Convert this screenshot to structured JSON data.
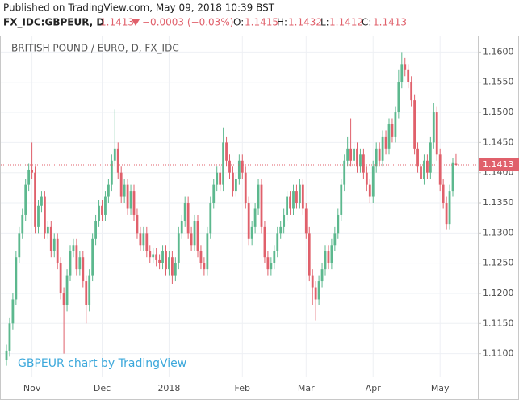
{
  "header": {
    "published": "Published on TradingView.com, May 09, 2018 10:39 BST",
    "symbol": "FX_IDC:GBPEUR, D",
    "change": "−0.0003 (−0.03%)",
    "o_label": "O:",
    "h_label": "H:",
    "l_label": "L:",
    "c_label": "C:"
  },
  "chart_data": {
    "type": "candlestick",
    "title": "BRITISH POUND / EURO, D, FX_IDC",
    "watermark": "GBPEUR chart by TradingView",
    "up_color": "#5cb88e",
    "down_color": "#e0606b",
    "grid": true,
    "ylim": [
      1.1062,
      1.1626
    ],
    "yticks": [
      {
        "value": 1.11,
        "label": "1.1100"
      },
      {
        "value": 1.115,
        "label": "1.1150"
      },
      {
        "value": 1.12,
        "label": "1.1200"
      },
      {
        "value": 1.125,
        "label": "1.1250"
      },
      {
        "value": 1.13,
        "label": "1.1300"
      },
      {
        "value": 1.135,
        "label": "1.1350"
      },
      {
        "value": 1.14,
        "label": "1.1400"
      },
      {
        "value": 1.145,
        "label": "1.1450"
      },
      {
        "value": 1.15,
        "label": "1.1500"
      },
      {
        "value": 1.155,
        "label": "1.1550"
      },
      {
        "value": 1.16,
        "label": "1.1600"
      }
    ],
    "categories": [
      null,
      null,
      null,
      null,
      null,
      null,
      null,
      null,
      "Nov",
      null,
      null,
      null,
      null,
      null,
      null,
      null,
      null,
      null,
      null,
      null,
      null,
      null,
      null,
      null,
      null,
      null,
      null,
      null,
      null,
      null,
      "Dec",
      null,
      null,
      null,
      null,
      null,
      null,
      null,
      null,
      null,
      null,
      null,
      null,
      null,
      null,
      null,
      null,
      null,
      null,
      null,
      null,
      "2018",
      null,
      null,
      null,
      null,
      null,
      null,
      null,
      null,
      null,
      null,
      null,
      null,
      null,
      null,
      null,
      null,
      null,
      null,
      null,
      null,
      null,
      null,
      "Feb",
      null,
      null,
      null,
      null,
      null,
      null,
      null,
      null,
      null,
      null,
      null,
      null,
      null,
      null,
      null,
      null,
      null,
      null,
      null,
      "Mar",
      null,
      null,
      null,
      null,
      null,
      null,
      null,
      null,
      null,
      null,
      null,
      null,
      null,
      null,
      null,
      null,
      null,
      null,
      null,
      null,
      "Apr",
      null,
      null,
      null,
      null,
      null,
      null,
      null,
      null,
      null,
      null,
      null,
      null,
      null,
      null,
      null,
      null,
      null,
      null,
      null,
      null,
      "May",
      null,
      null,
      null,
      null,
      null
    ],
    "open": [
      1.109,
      1.1105,
      1.115,
      1.119,
      1.126,
      1.13,
      1.133,
      1.138,
      1.1405,
      1.14,
      1.131,
      1.1345,
      1.136,
      1.13,
      1.131,
      1.127,
      1.129,
      1.125,
      1.12,
      1.118,
      1.123,
      1.127,
      1.128,
      1.124,
      1.126,
      1.122,
      1.118,
      1.123,
      1.129,
      1.132,
      1.1345,
      1.133,
      1.136,
      1.138,
      1.142,
      1.144,
      1.14,
      1.136,
      1.138,
      1.134,
      1.137,
      1.133,
      1.13,
      1.128,
      1.13,
      1.127,
      1.126,
      1.1265,
      1.1255,
      1.125,
      1.127,
      1.124,
      1.126,
      1.123,
      1.125,
      1.13,
      1.132,
      1.135,
      1.13,
      1.128,
      1.132,
      1.127,
      1.125,
      1.124,
      1.13,
      1.135,
      1.138,
      1.14,
      1.138,
      1.145,
      1.142,
      1.14,
      1.137,
      1.139,
      1.142,
      1.14,
      1.135,
      1.129,
      1.131,
      1.134,
      1.138,
      1.131,
      1.126,
      1.124,
      1.125,
      1.127,
      1.13,
      1.131,
      1.133,
      1.136,
      1.134,
      1.137,
      1.135,
      1.138,
      1.134,
      1.13,
      1.123,
      1.121,
      1.119,
      1.122,
      1.124,
      1.127,
      1.125,
      1.128,
      1.13,
      1.133,
      1.138,
      1.142,
      1.144,
      1.142,
      1.144,
      1.141,
      1.143,
      1.14,
      1.138,
      1.136,
      1.141,
      1.144,
      1.142,
      1.146,
      1.144,
      1.148,
      1.146,
      1.15,
      1.155,
      1.158,
      1.157,
      1.155,
      1.152,
      1.144,
      1.141,
      1.139,
      1.142,
      1.14,
      1.145,
      1.15,
      1.143,
      1.138,
      1.135,
      1.1315,
      1.137,
      1.1415
    ],
    "high": [
      1.1115,
      1.116,
      1.12,
      1.127,
      1.131,
      1.134,
      1.139,
      1.1415,
      1.145,
      1.141,
      1.1355,
      1.137,
      1.137,
      1.132,
      1.132,
      1.13,
      1.13,
      1.126,
      1.121,
      1.124,
      1.128,
      1.129,
      1.129,
      1.127,
      1.127,
      1.123,
      1.124,
      1.13,
      1.133,
      1.1355,
      1.1355,
      1.137,
      1.139,
      1.143,
      1.1505,
      1.145,
      1.141,
      1.139,
      1.139,
      1.138,
      1.138,
      1.134,
      1.131,
      1.131,
      1.131,
      1.128,
      1.1275,
      1.1275,
      1.1265,
      1.128,
      1.128,
      1.127,
      1.127,
      1.126,
      1.131,
      1.133,
      1.136,
      1.136,
      1.131,
      1.133,
      1.133,
      1.128,
      1.126,
      1.131,
      1.136,
      1.139,
      1.141,
      1.141,
      1.1475,
      1.146,
      1.143,
      1.141,
      1.14,
      1.143,
      1.143,
      1.141,
      1.136,
      1.132,
      1.135,
      1.139,
      1.139,
      1.132,
      1.127,
      1.126,
      1.128,
      1.131,
      1.132,
      1.134,
      1.137,
      1.137,
      1.138,
      1.138,
      1.139,
      1.139,
      1.135,
      1.131,
      1.124,
      1.122,
      1.123,
      1.125,
      1.128,
      1.128,
      1.129,
      1.131,
      1.134,
      1.139,
      1.143,
      1.146,
      1.149,
      1.145,
      1.145,
      1.144,
      1.144,
      1.141,
      1.139,
      1.142,
      1.145,
      1.145,
      1.147,
      1.147,
      1.149,
      1.149,
      1.151,
      1.157,
      1.16,
      1.159,
      1.158,
      1.156,
      1.153,
      1.145,
      1.142,
      1.143,
      1.143,
      1.146,
      1.1515,
      1.151,
      1.144,
      1.139,
      1.136,
      1.138,
      1.1425,
      1.1432
    ],
    "low": [
      1.108,
      1.1095,
      1.114,
      1.118,
      1.125,
      1.129,
      1.132,
      1.137,
      1.139,
      1.13,
      1.13,
      1.1335,
      1.129,
      1.129,
      1.126,
      1.126,
      1.124,
      1.119,
      1.11,
      1.117,
      1.122,
      1.126,
      1.123,
      1.123,
      1.121,
      1.115,
      1.117,
      1.122,
      1.128,
      1.131,
      1.132,
      1.132,
      1.135,
      1.137,
      1.141,
      1.139,
      1.135,
      1.135,
      1.133,
      1.133,
      1.132,
      1.129,
      1.127,
      1.127,
      1.126,
      1.125,
      1.125,
      1.1245,
      1.124,
      1.124,
      1.123,
      1.123,
      1.1215,
      1.122,
      1.124,
      1.129,
      1.131,
      1.129,
      1.127,
      1.127,
      1.126,
      1.124,
      1.123,
      1.123,
      1.129,
      1.134,
      1.137,
      1.137,
      1.137,
      1.141,
      1.139,
      1.136,
      1.136,
      1.138,
      1.139,
      1.134,
      1.128,
      1.128,
      1.13,
      1.133,
      1.13,
      1.125,
      1.123,
      1.123,
      1.124,
      1.126,
      1.129,
      1.13,
      1.132,
      1.133,
      1.133,
      1.134,
      1.134,
      1.133,
      1.129,
      1.122,
      1.118,
      1.1155,
      1.118,
      1.121,
      1.123,
      1.124,
      1.124,
      1.127,
      1.129,
      1.132,
      1.137,
      1.141,
      1.141,
      1.141,
      1.14,
      1.14,
      1.139,
      1.137,
      1.135,
      1.135,
      1.14,
      1.141,
      1.141,
      1.143,
      1.143,
      1.145,
      1.145,
      1.149,
      1.154,
      1.156,
      1.154,
      1.151,
      1.143,
      1.14,
      1.138,
      1.138,
      1.139,
      1.139,
      1.144,
      1.142,
      1.137,
      1.134,
      1.1305,
      1.1305,
      1.136,
      1.1412
    ],
    "close": [
      1.1105,
      1.115,
      1.119,
      1.126,
      1.13,
      1.133,
      1.138,
      1.1405,
      1.14,
      1.131,
      1.1345,
      1.136,
      1.13,
      1.131,
      1.127,
      1.129,
      1.125,
      1.12,
      1.118,
      1.123,
      1.127,
      1.128,
      1.124,
      1.126,
      1.122,
      1.118,
      1.123,
      1.129,
      1.132,
      1.1345,
      1.133,
      1.136,
      1.138,
      1.142,
      1.144,
      1.14,
      1.136,
      1.138,
      1.134,
      1.137,
      1.133,
      1.13,
      1.128,
      1.13,
      1.127,
      1.126,
      1.1265,
      1.1255,
      1.125,
      1.127,
      1.124,
      1.126,
      1.123,
      1.125,
      1.13,
      1.132,
      1.135,
      1.13,
      1.128,
      1.132,
      1.127,
      1.125,
      1.124,
      1.13,
      1.135,
      1.138,
      1.14,
      1.138,
      1.145,
      1.142,
      1.14,
      1.137,
      1.139,
      1.142,
      1.14,
      1.135,
      1.129,
      1.131,
      1.134,
      1.138,
      1.131,
      1.126,
      1.124,
      1.125,
      1.127,
      1.13,
      1.131,
      1.133,
      1.136,
      1.134,
      1.137,
      1.135,
      1.138,
      1.134,
      1.13,
      1.123,
      1.121,
      1.119,
      1.122,
      1.124,
      1.127,
      1.125,
      1.128,
      1.13,
      1.133,
      1.138,
      1.142,
      1.144,
      1.142,
      1.144,
      1.141,
      1.143,
      1.14,
      1.138,
      1.136,
      1.141,
      1.144,
      1.142,
      1.146,
      1.144,
      1.148,
      1.146,
      1.15,
      1.155,
      1.158,
      1.157,
      1.155,
      1.152,
      1.144,
      1.141,
      1.139,
      1.142,
      1.14,
      1.145,
      1.15,
      1.143,
      1.138,
      1.135,
      1.1315,
      1.137,
      1.1416,
      1.1413
    ]
  }
}
